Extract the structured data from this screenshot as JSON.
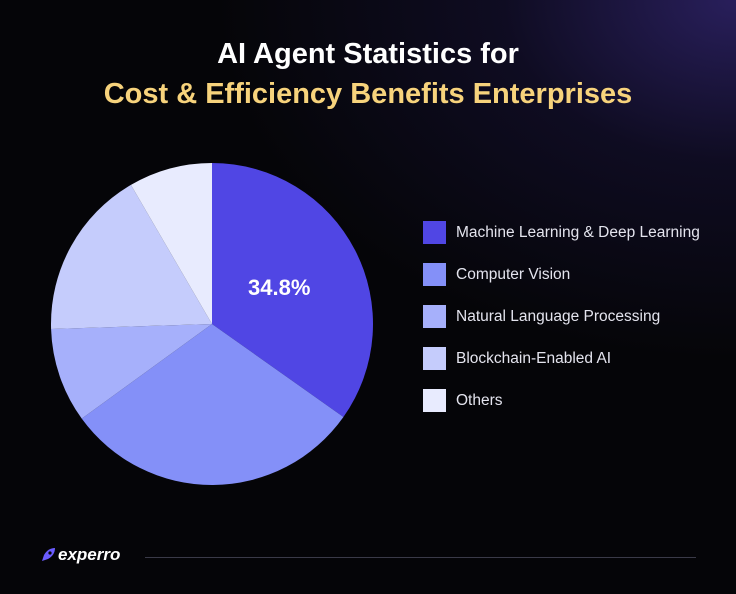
{
  "header": {
    "title_line1": "AI Agent Statistics for",
    "title_line2": "Cost & Efficiency Benefits Enterprises"
  },
  "chart_data": {
    "type": "pie",
    "title": "AI Agent Statistics for Cost & Efficiency Benefits Enterprises",
    "categories": [
      "Machine Learning & Deep Learning",
      "Computer Vision",
      "Natural Language Processing",
      "Blockchain-Enabled AI",
      "Others"
    ],
    "values": [
      34.8,
      30.2,
      9.5,
      17.1,
      8.4
    ],
    "colors": [
      "#5046e4",
      "#8490f8",
      "#a6b0fb",
      "#c5ccfc",
      "#e8ebfe"
    ],
    "data_labels": [
      "34.8%",
      "",
      "",
      "",
      ""
    ],
    "start_angle_deg": 0,
    "direction": "clockwise",
    "legend_position": "right"
  },
  "footer": {
    "logo_text": "experro",
    "logo_color": "#6a5cff"
  }
}
